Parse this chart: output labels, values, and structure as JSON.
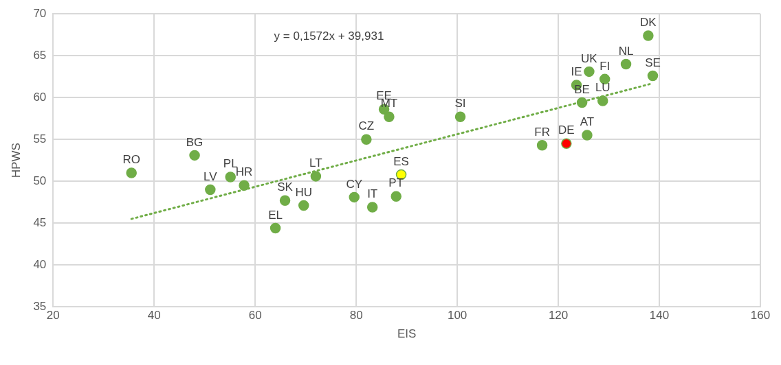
{
  "chart_data": {
    "type": "scatter",
    "xlabel": "EIS",
    "ylabel": "HPWS",
    "xlim": [
      20,
      160
    ],
    "xticks": [
      20,
      40,
      60,
      80,
      100,
      120,
      140,
      160
    ],
    "ylim": [
      35,
      70
    ],
    "yticks": [
      35,
      40,
      45,
      50,
      55,
      60,
      65,
      70
    ],
    "grid": true,
    "marker": "circle",
    "series": [
      {
        "color": "#70ad47",
        "x": [
          35.5,
          48.0,
          51.1,
          55.1,
          57.8,
          64.0,
          65.9,
          69.6,
          72.0,
          79.6,
          83.2,
          82.0,
          85.5,
          86.5,
          87.9,
          88.9,
          100.6,
          116.8,
          121.6,
          123.6,
          124.7,
          125.7,
          126.1,
          128.8,
          129.2,
          133.4,
          137.8,
          138.7
        ],
        "values": [
          51.0,
          53.1,
          49.0,
          50.5,
          49.5,
          44.4,
          47.7,
          47.1,
          50.6,
          48.1,
          46.9,
          55.0,
          58.6,
          57.7,
          48.2,
          50.8,
          57.7,
          54.3,
          54.5,
          61.5,
          59.4,
          55.5,
          63.1,
          59.6,
          62.2,
          64.0,
          67.4,
          62.6
        ],
        "colors": [
          "#70ad47",
          "#70ad47",
          "#70ad47",
          "#70ad47",
          "#70ad47",
          "#70ad47",
          "#70ad47",
          "#70ad47",
          "#70ad47",
          "#70ad47",
          "#70ad47",
          "#70ad47",
          "#70ad47",
          "#70ad47",
          "#70ad47",
          "#ffff00",
          "#70ad47",
          "#70ad47",
          "#ff0000",
          "#70ad47",
          "#70ad47",
          "#70ad47",
          "#70ad47",
          "#70ad47",
          "#70ad47",
          "#70ad47",
          "#70ad47",
          "#70ad47"
        ]
      },
      {
        "type": "line",
        "color": "#70ad47",
        "line_style": "dotted",
        "marker": "none",
        "x": [
          35.5,
          138.7
        ],
        "values": [
          45.5,
          61.7
        ]
      }
    ],
    "annotations": [
      "y = 0,1572x + 39,931",
      {
        "text": "RO",
        "x": 35.5,
        "y": 51.0
      },
      {
        "text": "BG",
        "x": 48.0,
        "y": 53.1
      },
      {
        "text": "LV",
        "x": 51.1,
        "y": 49.0
      },
      {
        "text": "PL",
        "x": 55.1,
        "y": 50.5
      },
      {
        "text": "HR",
        "x": 57.8,
        "y": 49.5
      },
      {
        "text": "EL",
        "x": 64.0,
        "y": 44.4
      },
      {
        "text": "SK",
        "x": 65.9,
        "y": 47.7
      },
      {
        "text": "HU",
        "x": 69.6,
        "y": 47.1
      },
      {
        "text": "LT",
        "x": 72.0,
        "y": 50.6
      },
      {
        "text": "CY",
        "x": 79.6,
        "y": 48.1
      },
      {
        "text": "IT",
        "x": 83.2,
        "y": 46.9
      },
      {
        "text": "CZ",
        "x": 82.0,
        "y": 55.0
      },
      {
        "text": "EE",
        "x": 85.5,
        "y": 58.6
      },
      {
        "text": "MT",
        "x": 86.5,
        "y": 57.7
      },
      {
        "text": "PT",
        "x": 87.9,
        "y": 48.2
      },
      {
        "text": "ES",
        "x": 88.9,
        "y": 50.8
      },
      {
        "text": "SI",
        "x": 100.6,
        "y": 57.7
      },
      {
        "text": "FR",
        "x": 116.8,
        "y": 54.3
      },
      {
        "text": "DE",
        "x": 121.6,
        "y": 54.5
      },
      {
        "text": "IE",
        "x": 123.6,
        "y": 61.5
      },
      {
        "text": "BE",
        "x": 124.7,
        "y": 59.4
      },
      {
        "text": "AT",
        "x": 125.7,
        "y": 55.5
      },
      {
        "text": "UK",
        "x": 126.1,
        "y": 63.1
      },
      {
        "text": "LU",
        "x": 128.8,
        "y": 59.6
      },
      {
        "text": "FI",
        "x": 129.2,
        "y": 62.2
      },
      {
        "text": "NL",
        "x": 133.4,
        "y": 64.0
      },
      {
        "text": "DK",
        "x": 137.8,
        "y": 67.4
      },
      {
        "text": "SE",
        "x": 138.7,
        "y": 62.6
      }
    ]
  }
}
